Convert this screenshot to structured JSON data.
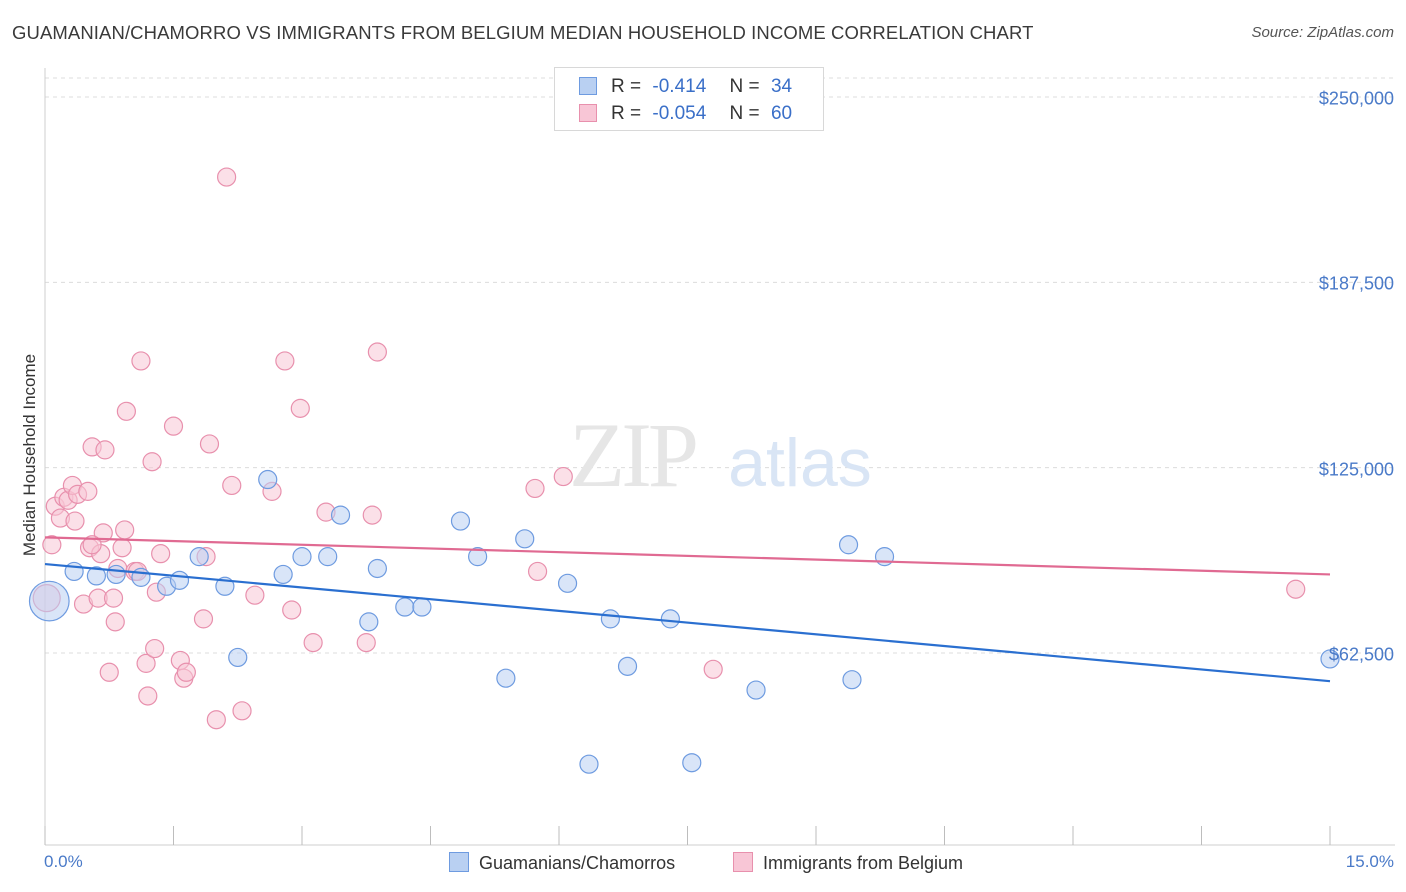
{
  "title": "GUAMANIAN/CHAMORRO VS IMMIGRANTS FROM BELGIUM MEDIAN HOUSEHOLD INCOME CORRELATION CHART",
  "source": "Source: ZipAtlas.com",
  "watermark": {
    "zip": "ZIP",
    "atlas": "atlas"
  },
  "legend_top": {
    "rows": [
      {
        "r_label": "R =",
        "r_value": "-0.414",
        "n_label": "N =",
        "n_value": "34"
      },
      {
        "r_label": "R =",
        "r_value": "-0.054",
        "n_label": "N =",
        "n_value": "60"
      }
    ]
  },
  "colors": {
    "blue_fill": "#b9d0f2",
    "blue_stroke": "#6e9be0",
    "blue_line": "#2a6fd0",
    "pink_fill": "#f8c6d6",
    "pink_stroke": "#e890ad",
    "pink_line": "#e06a92",
    "tick_text": "#4a7ac8",
    "grid": "#dcdcdc"
  },
  "chart_data": {
    "type": "scatter",
    "title": "GUAMANIAN/CHAMORRO VS IMMIGRANTS FROM BELGIUM MEDIAN HOUSEHOLD INCOME CORRELATION CHART",
    "xlabel": "",
    "ylabel": "Median Household Income",
    "xlim": [
      0,
      15
    ],
    "ylim": [
      0,
      250000
    ],
    "x_tick_labels": [
      "0.0%",
      "15.0%"
    ],
    "y_ticks": [
      62500,
      125000,
      187500,
      250000
    ],
    "y_tick_labels": [
      "$62,500",
      "$125,000",
      "$187,500",
      "$250,000"
    ],
    "grid": true,
    "legend_placement": "bottom",
    "series": [
      {
        "name": "Guamanians/Chamorros",
        "r": -0.414,
        "n": 34,
        "trend": [
          [
            0,
            92500
          ],
          [
            15,
            53000
          ]
        ],
        "points": [
          [
            0.05,
            80000,
            2.2
          ],
          [
            0.34,
            90000,
            1
          ],
          [
            0.6,
            88500,
            1
          ],
          [
            0.83,
            89000,
            1
          ],
          [
            1.12,
            88000,
            1
          ],
          [
            1.42,
            85000,
            1
          ],
          [
            1.57,
            87000,
            1
          ],
          [
            1.8,
            95000,
            1
          ],
          [
            2.1,
            85000,
            1
          ],
          [
            2.25,
            61000,
            1
          ],
          [
            2.6,
            121000,
            1
          ],
          [
            2.78,
            89000,
            1
          ],
          [
            3.0,
            95000,
            1
          ],
          [
            3.3,
            95000,
            1
          ],
          [
            3.45,
            109000,
            1
          ],
          [
            3.78,
            73000,
            1
          ],
          [
            3.88,
            91000,
            1
          ],
          [
            4.2,
            78000,
            1
          ],
          [
            4.4,
            78000,
            1
          ],
          [
            4.85,
            107000,
            1
          ],
          [
            5.05,
            95000,
            1
          ],
          [
            5.38,
            54000,
            1
          ],
          [
            5.6,
            101000,
            1
          ],
          [
            6.1,
            86000,
            1
          ],
          [
            6.35,
            25000,
            1
          ],
          [
            6.6,
            74000,
            1
          ],
          [
            6.8,
            58000,
            1
          ],
          [
            7.3,
            74000,
            1
          ],
          [
            7.55,
            25500,
            1
          ],
          [
            8.3,
            50000,
            1
          ],
          [
            9.38,
            99000,
            1
          ],
          [
            9.42,
            53500,
            1
          ],
          [
            9.8,
            95000,
            1
          ],
          [
            15.0,
            60500,
            1
          ]
        ]
      },
      {
        "name": "Immigrants from Belgium",
        "r": -0.054,
        "n": 60,
        "trend": [
          [
            0,
            101500
          ],
          [
            15,
            89000
          ]
        ],
        "points": [
          [
            0.02,
            81000,
            1.5
          ],
          [
            0.08,
            99000,
            1
          ],
          [
            0.12,
            112000,
            1
          ],
          [
            0.18,
            108000,
            1
          ],
          [
            0.22,
            115000,
            1
          ],
          [
            0.27,
            114000,
            1
          ],
          [
            0.32,
            119000,
            1
          ],
          [
            0.35,
            107000,
            1
          ],
          [
            0.38,
            116000,
            1
          ],
          [
            0.45,
            79000,
            1
          ],
          [
            0.5,
            117000,
            1
          ],
          [
            0.52,
            98000,
            1
          ],
          [
            0.55,
            132000,
            1
          ],
          [
            0.62,
            81000,
            1
          ],
          [
            0.65,
            96000,
            1
          ],
          [
            0.68,
            103000,
            1
          ],
          [
            0.7,
            131000,
            1
          ],
          [
            0.75,
            56000,
            1
          ],
          [
            0.8,
            81000,
            1
          ],
          [
            0.82,
            73000,
            1
          ],
          [
            0.85,
            91000,
            1
          ],
          [
            0.9,
            98000,
            1
          ],
          [
            0.93,
            104000,
            1
          ],
          [
            0.95,
            144000,
            1
          ],
          [
            1.05,
            90000,
            1
          ],
          [
            1.08,
            90000,
            1
          ],
          [
            1.12,
            161000,
            1
          ],
          [
            1.18,
            59000,
            1
          ],
          [
            1.2,
            48000,
            1
          ],
          [
            1.25,
            127000,
            1
          ],
          [
            1.28,
            64000,
            1
          ],
          [
            1.3,
            83000,
            1
          ],
          [
            1.35,
            96000,
            1
          ],
          [
            1.5,
            139000,
            1
          ],
          [
            1.58,
            60000,
            1
          ],
          [
            1.62,
            54000,
            1
          ],
          [
            1.65,
            56000,
            1
          ],
          [
            1.85,
            74000,
            1
          ],
          [
            1.88,
            95000,
            1
          ],
          [
            1.92,
            133000,
            1
          ],
          [
            2.0,
            40000,
            1
          ],
          [
            2.12,
            223000,
            1
          ],
          [
            2.18,
            119000,
            1
          ],
          [
            2.3,
            43000,
            1
          ],
          [
            2.45,
            82000,
            1
          ],
          [
            2.65,
            117000,
            1
          ],
          [
            2.8,
            161000,
            1
          ],
          [
            2.88,
            77000,
            1
          ],
          [
            2.98,
            145000,
            1
          ],
          [
            3.13,
            66000,
            1
          ],
          [
            3.28,
            110000,
            1
          ],
          [
            3.75,
            66000,
            1
          ],
          [
            3.82,
            109000,
            1
          ],
          [
            3.88,
            164000,
            1
          ],
          [
            5.72,
            118000,
            1
          ],
          [
            5.75,
            90000,
            1
          ],
          [
            6.05,
            122000,
            1
          ],
          [
            7.8,
            57000,
            1
          ],
          [
            14.6,
            84000,
            1
          ],
          [
            0.55,
            99000,
            1
          ]
        ]
      }
    ]
  }
}
